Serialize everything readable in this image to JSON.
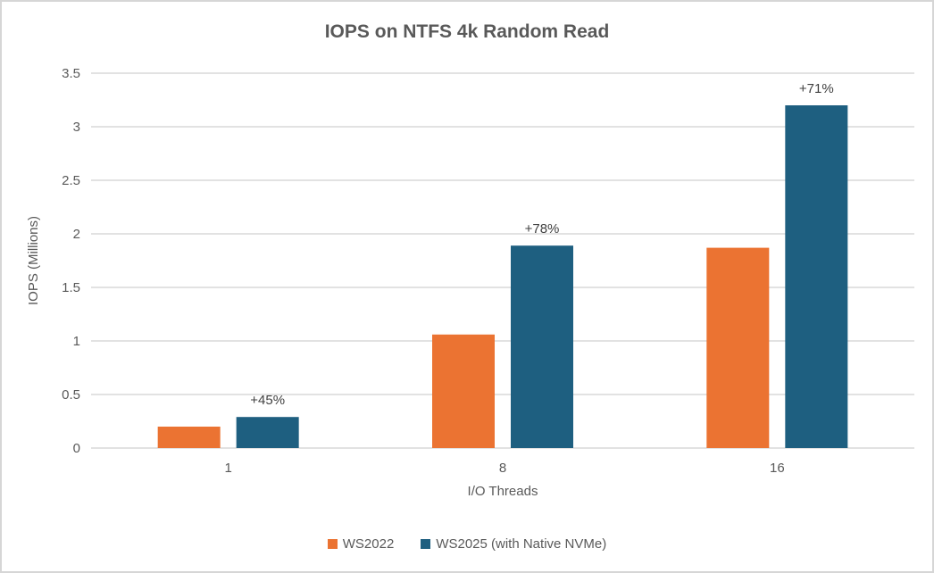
{
  "frame": {
    "background": "#FFFFFF",
    "border_color": "#D6D6D6"
  },
  "chart_data": {
    "type": "bar",
    "title": "IOPS on NTFS 4k Random Read",
    "xlabel": "I/O Threads",
    "ylabel": "IOPS (Millions)",
    "categories": [
      "1",
      "8",
      "16"
    ],
    "series": [
      {
        "name": "WS2022",
        "color": "#EB7332",
        "values": [
          0.2,
          1.06,
          1.87
        ]
      },
      {
        "name": "WS2025 (with Native NVMe)",
        "color": "#1E5F80",
        "values": [
          0.29,
          1.89,
          3.2
        ],
        "data_labels": [
          "+45%",
          "+78%",
          "+71%"
        ]
      }
    ],
    "ylim": [
      0,
      3.5
    ],
    "ytick_step": 0.5,
    "yticks": [
      "0",
      "0.5",
      "1",
      "1.5",
      "2",
      "2.5",
      "3",
      "3.5"
    ],
    "grid": true,
    "gridline_color": "#D9D9D9",
    "legend_position": "bottom",
    "text_color": "#595959",
    "data_label_color": "#404040"
  }
}
